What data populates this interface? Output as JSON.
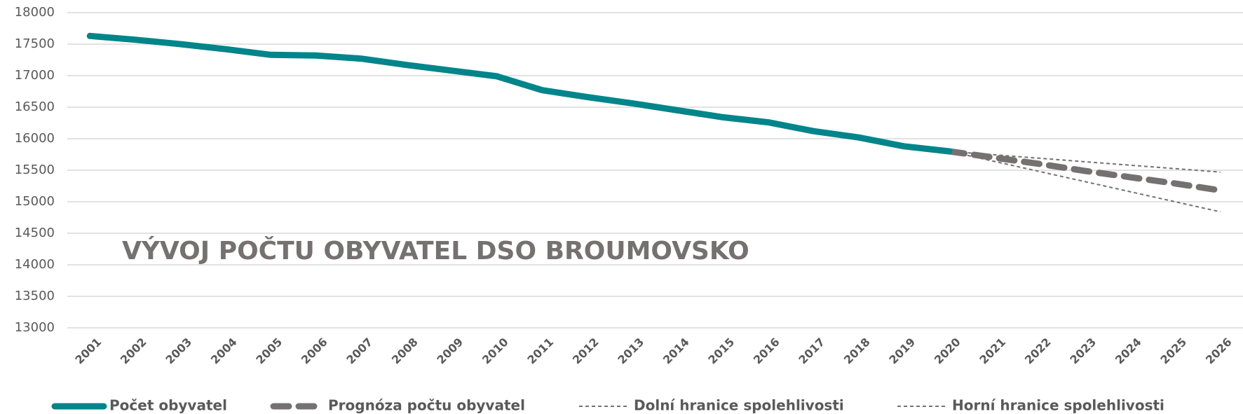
{
  "chart_data": {
    "type": "line",
    "title": "VÝVOJ POČTU OBYVATEL DSO BROUMOVSKO",
    "categories": [
      "2001",
      "2002",
      "2003",
      "2004",
      "2005",
      "2006",
      "2007",
      "2008",
      "2009",
      "2010",
      "2011",
      "2012",
      "2013",
      "2014",
      "2015",
      "2016",
      "2017",
      "2018",
      "2019",
      "2020",
      "2021",
      "2022",
      "2023",
      "2024",
      "2025",
      "2026"
    ],
    "series": [
      {
        "name": "Počet obyvatel",
        "color": "#00858a",
        "style": "solid",
        "values": [
          17630,
          17570,
          17500,
          17420,
          17330,
          17320,
          17270,
          17170,
          17080,
          16990,
          16770,
          16660,
          16560,
          16450,
          16340,
          16260,
          16120,
          16020,
          15880,
          15800,
          null,
          null,
          null,
          null,
          null,
          null
        ]
      },
      {
        "name": "Prognóza počtu obyvatel",
        "color": "#767171",
        "style": "long-dash",
        "values": [
          null,
          null,
          null,
          null,
          null,
          null,
          null,
          null,
          null,
          null,
          null,
          null,
          null,
          null,
          null,
          null,
          null,
          null,
          null,
          15800,
          15700,
          15600,
          15490,
          15390,
          15290,
          15180
        ]
      },
      {
        "name": "Dolní hranice spolehlivosti",
        "color": "#767171",
        "style": "dash",
        "values": [
          null,
          null,
          null,
          null,
          null,
          null,
          null,
          null,
          null,
          null,
          null,
          null,
          null,
          null,
          null,
          null,
          null,
          null,
          null,
          15800,
          15640,
          15480,
          15320,
          15160,
          15000,
          14840
        ]
      },
      {
        "name": "Horní hranice spolehlivosti",
        "color": "#767171",
        "style": "dash",
        "values": [
          null,
          null,
          null,
          null,
          null,
          null,
          null,
          null,
          null,
          null,
          null,
          null,
          null,
          null,
          null,
          null,
          null,
          null,
          null,
          15800,
          15745,
          15690,
          15635,
          15580,
          15525,
          15470
        ]
      }
    ],
    "ylim": [
      13000,
      18000
    ],
    "yticks": [
      13000,
      13500,
      14000,
      14500,
      15000,
      15500,
      16000,
      16500,
      17000,
      17500,
      18000
    ],
    "grid": true,
    "legend": "bottom"
  }
}
